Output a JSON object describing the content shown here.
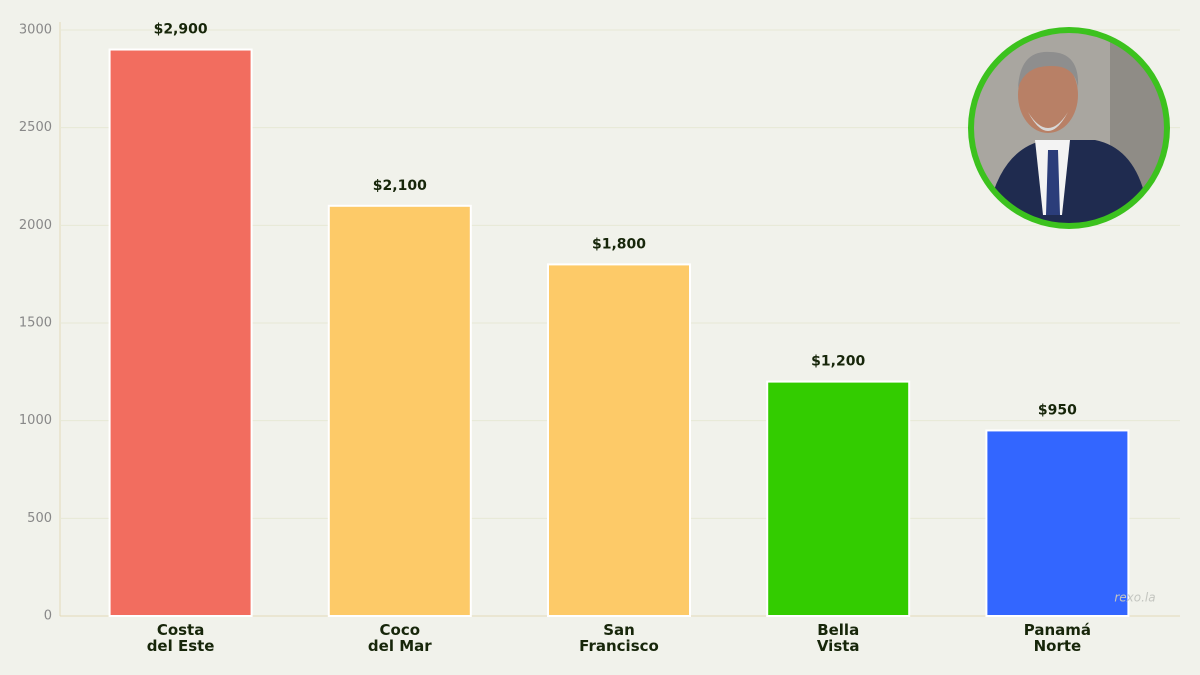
{
  "chart_data": {
    "type": "bar",
    "categories": [
      "Costa\ndel Este",
      "Coco\ndel Mar",
      "San\nFrancisco",
      "Bella\nVista",
      "Panamá\nNorte"
    ],
    "values": [
      2900,
      2100,
      1800,
      1200,
      950
    ],
    "value_labels": [
      "$2,900",
      "$2,100",
      "$1,800",
      "$1,200",
      "$950"
    ],
    "colors": [
      "#f26d5f",
      "#fdca68",
      "#fdca68",
      "#33cc00",
      "#3366ff"
    ],
    "ylim": [
      0,
      3000
    ],
    "yticks": [
      0,
      500,
      1000,
      1500,
      2000,
      2500,
      3000
    ],
    "grid": true,
    "watermark": "rexo.la"
  }
}
